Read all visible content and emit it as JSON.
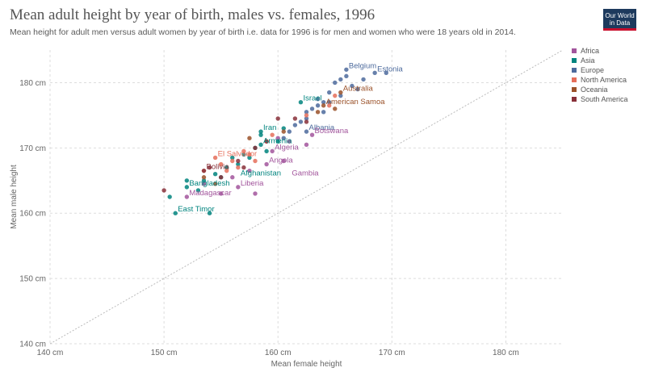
{
  "header": {
    "title": "Mean adult height by year of birth, males vs. females, 1996",
    "subtitle": "Mean height for adult men versus adult women by year of birth i.e. data for 1996 is for men and women who were 18 years old in 2014.",
    "logo_line1": "Our World",
    "logo_line2": "in Data"
  },
  "chart_data": {
    "type": "scatter",
    "title": "Mean adult height by year of birth, males vs. females, 1996",
    "xlabel": "Mean female height",
    "ylabel": "Mean male height",
    "xlim": [
      140,
      185
    ],
    "ylim": [
      140,
      185
    ],
    "x_ticks": [
      140,
      150,
      160,
      170,
      180
    ],
    "x_tick_labels": [
      "140 cm",
      "150 cm",
      "160 cm",
      "170 cm",
      "180 cm"
    ],
    "y_ticks": [
      140,
      150,
      160,
      170,
      180
    ],
    "y_tick_labels": [
      "140 cm",
      "150 cm",
      "160 cm",
      "170 cm",
      "180 cm"
    ],
    "grid": true,
    "reference_line": "y = x",
    "legend_position": "top-right",
    "series": [
      {
        "name": "Africa",
        "color": "#a2559c",
        "points": [
          [
            156.5,
            164.0
          ],
          [
            155.0,
            163.0
          ],
          [
            152.0,
            162.5
          ],
          [
            159.0,
            167.5
          ],
          [
            159.5,
            169.5
          ],
          [
            160.5,
            168.0
          ],
          [
            161.0,
            171.0
          ],
          [
            157.5,
            166.5
          ],
          [
            156.0,
            165.5
          ],
          [
            153.5,
            164.5
          ],
          [
            160.0,
            171.5
          ],
          [
            158.0,
            163.0
          ],
          [
            162.5,
            170.5
          ],
          [
            163.0,
            172.0
          ]
        ]
      },
      {
        "name": "Asia",
        "color": "#00847e",
        "points": [
          [
            151.0,
            160.0
          ],
          [
            154.0,
            160.0
          ],
          [
            152.0,
            164.0
          ],
          [
            153.0,
            163.5
          ],
          [
            150.5,
            162.5
          ],
          [
            155.0,
            165.5
          ],
          [
            153.5,
            165.0
          ],
          [
            156.5,
            167.5
          ],
          [
            157.5,
            168.5
          ],
          [
            158.0,
            170.0
          ],
          [
            158.5,
            170.5
          ],
          [
            159.0,
            169.5
          ],
          [
            162.0,
            177.0
          ],
          [
            160.0,
            171.0
          ],
          [
            158.5,
            172.0
          ],
          [
            152.0,
            165.0
          ],
          [
            154.5,
            166.0
          ],
          [
            155.5,
            167.0
          ],
          [
            156.0,
            168.5
          ],
          [
            157.0,
            169.0
          ],
          [
            158.5,
            172.5
          ],
          [
            160.5,
            173.0
          ]
        ]
      },
      {
        "name": "Europe",
        "color": "#4c6a9c",
        "points": [
          [
            168.5,
            181.5
          ],
          [
            166.0,
            182.0
          ],
          [
            169.5,
            181.5
          ],
          [
            167.5,
            180.5
          ],
          [
            166.0,
            181.0
          ],
          [
            165.5,
            180.5
          ],
          [
            166.5,
            179.5
          ],
          [
            167.0,
            179.0
          ],
          [
            165.0,
            180.0
          ],
          [
            164.5,
            178.5
          ],
          [
            163.5,
            177.5
          ],
          [
            164.0,
            177.0
          ],
          [
            163.0,
            176.0
          ],
          [
            162.5,
            175.5
          ],
          [
            162.0,
            174.0
          ],
          [
            161.5,
            173.5
          ],
          [
            164.5,
            177.0
          ],
          [
            165.5,
            178.0
          ],
          [
            163.5,
            176.5
          ],
          [
            162.5,
            174.5
          ],
          [
            161.0,
            172.5
          ],
          [
            164.0,
            175.5
          ],
          [
            160.5,
            171.5
          ],
          [
            162.5,
            172.5
          ]
        ]
      },
      {
        "name": "North America",
        "color": "#e56e5a",
        "points": [
          [
            154.5,
            168.5
          ],
          [
            155.0,
            167.5
          ],
          [
            156.0,
            168.0
          ],
          [
            157.0,
            169.5
          ],
          [
            156.5,
            167.0
          ],
          [
            158.0,
            168.0
          ],
          [
            157.5,
            169.0
          ],
          [
            155.5,
            166.5
          ],
          [
            159.5,
            172.0
          ],
          [
            162.5,
            175.0
          ],
          [
            164.5,
            176.5
          ],
          [
            165.0,
            178.0
          ],
          [
            153.5,
            166.5
          ],
          [
            159.0,
            171.0
          ]
        ]
      },
      {
        "name": "Oceania",
        "color": "#9a5129",
        "points": [
          [
            165.5,
            178.5
          ],
          [
            164.0,
            176.5
          ],
          [
            163.5,
            175.5
          ],
          [
            165.0,
            176.0
          ],
          [
            160.5,
            172.5
          ],
          [
            157.5,
            171.5
          ],
          [
            154.5,
            164.5
          ],
          [
            153.5,
            165.5
          ]
        ]
      },
      {
        "name": "South America",
        "color": "#883039",
        "points": [
          [
            150.0,
            163.5
          ],
          [
            153.5,
            166.5
          ],
          [
            154.0,
            167.0
          ],
          [
            156.5,
            168.0
          ],
          [
            157.0,
            167.0
          ],
          [
            158.0,
            170.0
          ],
          [
            159.0,
            171.0
          ],
          [
            155.0,
            165.5
          ],
          [
            160.0,
            174.5
          ],
          [
            162.5,
            174.0
          ],
          [
            161.5,
            174.5
          ]
        ]
      }
    ],
    "annotations": [
      {
        "text": "Belgium",
        "x": 166.0,
        "y": 182.0,
        "series": "Europe"
      },
      {
        "text": "Estonia",
        "x": 168.5,
        "y": 181.5,
        "series": "Europe"
      },
      {
        "text": "Australia",
        "x": 165.5,
        "y": 178.5,
        "series": "Oceania"
      },
      {
        "text": "Israel",
        "x": 162.0,
        "y": 177.0,
        "series": "Asia"
      },
      {
        "text": "American Samoa",
        "x": 164.0,
        "y": 176.5,
        "series": "Oceania"
      },
      {
        "text": "Iran",
        "x": 158.5,
        "y": 172.5,
        "series": "Asia"
      },
      {
        "text": "Albania",
        "x": 162.5,
        "y": 172.5,
        "series": "Europe"
      },
      {
        "text": "Armenia",
        "x": 158.5,
        "y": 170.5,
        "series": "Asia"
      },
      {
        "text": "Botswana",
        "x": 163.0,
        "y": 172.0,
        "series": "Africa"
      },
      {
        "text": "El Salvador",
        "x": 154.5,
        "y": 168.5,
        "series": "North America"
      },
      {
        "text": "Algeria",
        "x": 159.5,
        "y": 169.5,
        "series": "Africa"
      },
      {
        "text": "Bolivia",
        "x": 153.5,
        "y": 166.5,
        "series": "South America"
      },
      {
        "text": "Angola",
        "x": 159.0,
        "y": 167.5,
        "series": "Africa"
      },
      {
        "text": "Afghanistan",
        "x": 156.5,
        "y": 165.5,
        "series": "Asia"
      },
      {
        "text": "Gambia",
        "x": 161.0,
        "y": 165.5,
        "series": "Africa"
      },
      {
        "text": "Bangladesh",
        "x": 152.0,
        "y": 164.0,
        "series": "Asia"
      },
      {
        "text": "Liberia",
        "x": 156.5,
        "y": 164.0,
        "series": "Africa"
      },
      {
        "text": "Madagascar",
        "x": 152.0,
        "y": 162.5,
        "series": "Africa"
      },
      {
        "text": "East Timor",
        "x": 151.0,
        "y": 160.0,
        "series": "Asia"
      }
    ]
  }
}
